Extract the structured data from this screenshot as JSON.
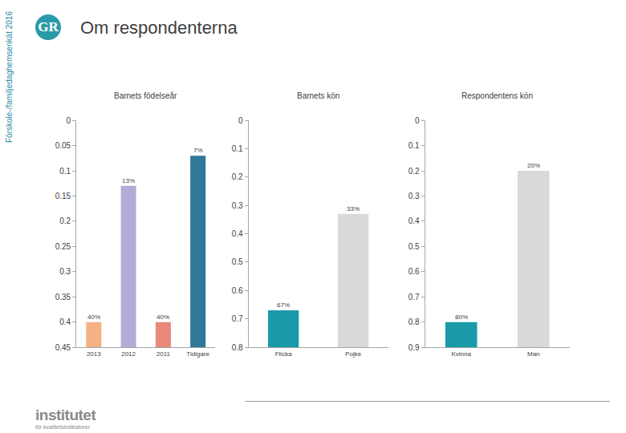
{
  "header": {
    "side_text": "Förskole-/familjedaghemsenkät 2016",
    "logo": "GR",
    "title": "Om respondenterna"
  },
  "footer": {
    "logo_text": "institutet",
    "logo_subtext": "för kvalitetsindikatorer"
  },
  "chart_data": [
    {
      "type": "bar",
      "title": "Barnets födelseår",
      "categories": [
        "2013",
        "2012",
        "2011",
        "Tidigare"
      ],
      "values": [
        0.4,
        0.13,
        0.4,
        0.07
      ],
      "value_labels": [
        "40%",
        "13%",
        "40%",
        "7%"
      ],
      "colors": [
        "#f4b183",
        "#b4acd6",
        "#e8897a",
        "#2e7898"
      ],
      "ylim": [
        0.45,
        0
      ],
      "yticks": [
        0,
        0.05,
        0.1,
        0.15,
        0.2,
        0.25,
        0.3,
        0.35,
        0.4,
        0.45
      ],
      "grid": false,
      "data_labels": true
    },
    {
      "type": "bar",
      "title": "Barnets kön",
      "categories": [
        "Flicka",
        "Pojke"
      ],
      "values": [
        0.67,
        0.33
      ],
      "value_labels": [
        "67%",
        "33%"
      ],
      "colors": [
        "#1a9aa8",
        "#d9d9d9"
      ],
      "ylim": [
        0.8,
        0
      ],
      "yticks": [
        0,
        0.1,
        0.2,
        0.3,
        0.4,
        0.5,
        0.6,
        0.7,
        0.8
      ],
      "grid": false,
      "data_labels": true
    },
    {
      "type": "bar",
      "title": "Respondentens kön",
      "categories": [
        "Kvinna",
        "Man"
      ],
      "values": [
        0.8,
        0.2
      ],
      "value_labels": [
        "80%",
        "20%"
      ],
      "colors": [
        "#1a9aa8",
        "#d9d9d9"
      ],
      "ylim": [
        0.9,
        0
      ],
      "yticks": [
        0,
        0.1,
        0.2,
        0.3,
        0.4,
        0.5,
        0.6,
        0.7,
        0.8,
        0.9
      ],
      "grid": false,
      "data_labels": true
    }
  ]
}
